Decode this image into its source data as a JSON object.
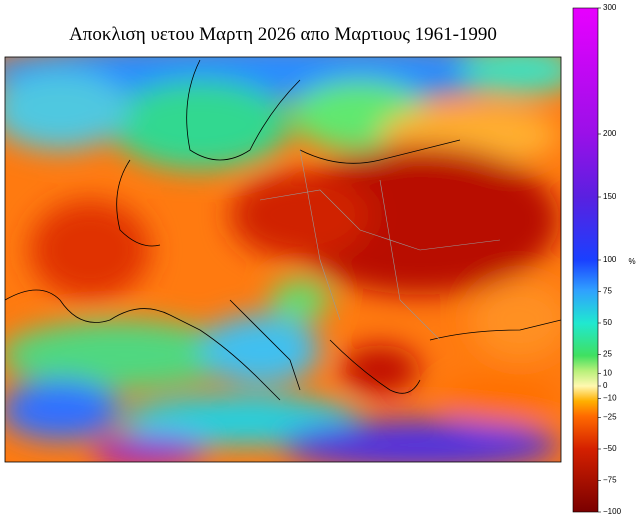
{
  "title": "Αποκλιση υετου Μαρτη 2026 απο Μαρτιους 1961-1990",
  "colorbar": {
    "label": "%",
    "lim": [
      -100,
      300
    ],
    "ticks": [
      {
        "value": -100,
        "label": "−100"
      },
      {
        "value": -75,
        "label": "−75"
      },
      {
        "value": -50,
        "label": "−50"
      },
      {
        "value": -25,
        "label": "−25"
      },
      {
        "value": -10,
        "label": "−10"
      },
      0,
      10,
      25,
      50,
      75,
      100,
      150,
      200,
      300
    ]
  }
}
